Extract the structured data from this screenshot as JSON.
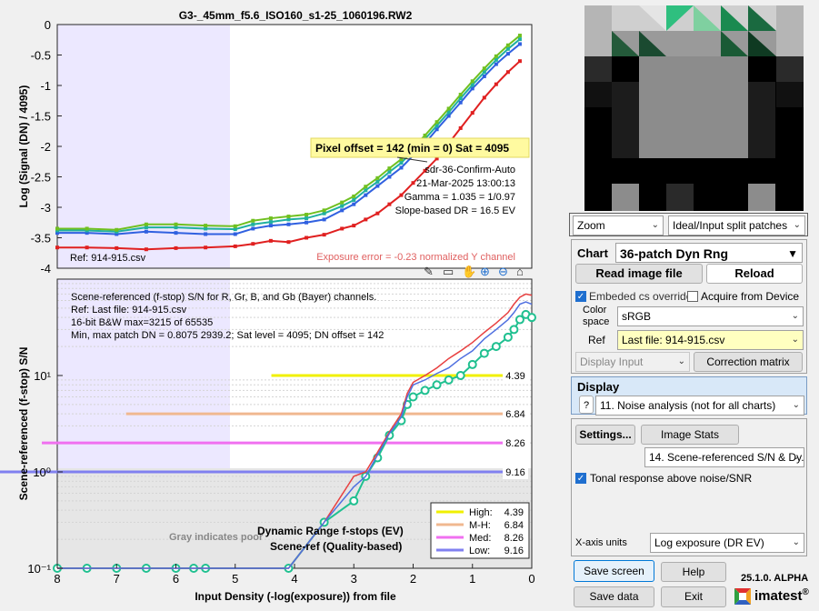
{
  "plot_title": "G3-_45mm_f5.6_ISO160_s1-25_1060196.RW2",
  "top_chart": {
    "ylabel": "Log (Signal (DN) / 4095)",
    "yticks": [
      "0",
      "-0.5",
      "-1",
      "-1.5",
      "-2",
      "-2.5",
      "-3",
      "-3.5",
      "-4"
    ],
    "ref_text": "Ref: 914-915.csv",
    "pixel_offset_text": "Pixel offset = 142  (min = 0)  Sat = 4095",
    "info_lines": [
      "sdr-36-Confirm-Auto",
      "21-Mar-2025 13:00:13",
      "Gamma = 1.035 = 1/0.97",
      "Slope-based DR = 16.5 EV"
    ],
    "exposure_error": "Exposure error = -0.23 normalized Y channel"
  },
  "bottom_chart": {
    "ylabel": "Scene-referenced (f-stop) S/N",
    "xlabel": "Input Density (-log(exposure))   from file",
    "xticks": [
      "8",
      "7",
      "6",
      "5",
      "4",
      "3",
      "2",
      "1",
      "0"
    ],
    "yticks": [
      "10¹",
      "10⁰",
      "10⁻¹"
    ],
    "info_lines": [
      "Scene-referenced (f-stop) S/N for R, Gr, B, and Gb (Bayer) channels.",
      "Ref: Last file: 914-915.csv",
      "16-bit B&W  max=3215 of 65535",
      "Min, max patch DN = 0.8075  2939.2;   Sat level = 4095;   DN offset = 142"
    ],
    "gray_note": "Gray indicates poor",
    "dr_label_1": "Dynamic Range f-stops (EV)",
    "dr_label_2": "Scene-ref (Quality-based)",
    "level_labels": [
      "4.39",
      "6.84",
      "8.26",
      "9.16"
    ],
    "legend": [
      {
        "name": "High:",
        "value": "4.39",
        "color": "#f0f000"
      },
      {
        "name": "M-H:",
        "value": "6.84",
        "color": "#f0b890"
      },
      {
        "name": "Med:",
        "value": "8.26",
        "color": "#f070f0"
      },
      {
        "name": "Low:",
        "value": "9.16",
        "color": "#8080f0"
      }
    ]
  },
  "chart_data": [
    {
      "type": "line",
      "title": "G3-_45mm_f5.6_ISO160_s1-25_1060196.RW2",
      "xlabel": "Input Density (-log(exposure))   from file",
      "ylabel": "Log (Signal (DN) / 4095)",
      "xlim": [
        8,
        0
      ],
      "ylim": [
        -4,
        0
      ],
      "x": [
        8,
        7.5,
        7,
        6.5,
        6,
        5.5,
        5,
        4.7,
        4.4,
        4.1,
        3.8,
        3.5,
        3.2,
        3.0,
        2.8,
        2.6,
        2.4,
        2.2,
        2.0,
        1.8,
        1.6,
        1.4,
        1.2,
        1.0,
        0.8,
        0.6,
        0.4,
        0.2
      ],
      "series": [
        {
          "color": "#e02020",
          "values": [
            -3.66,
            -3.66,
            -3.67,
            -3.69,
            -3.67,
            -3.66,
            -3.64,
            -3.6,
            -3.55,
            -3.57,
            -3.5,
            -3.45,
            -3.35,
            -3.3,
            -3.2,
            -3.1,
            -2.95,
            -2.8,
            -2.6,
            -2.4,
            -2.2,
            -1.95,
            -1.7,
            -1.45,
            -1.2,
            -0.98,
            -0.78,
            -0.6
          ]
        },
        {
          "color": "#3060e0",
          "values": [
            -3.42,
            -3.42,
            -3.44,
            -3.4,
            -3.42,
            -3.44,
            -3.44,
            -3.35,
            -3.3,
            -3.28,
            -3.25,
            -3.2,
            -3.05,
            -2.95,
            -2.8,
            -2.65,
            -2.5,
            -2.35,
            -2.15,
            -1.95,
            -1.72,
            -1.5,
            -1.28,
            -1.05,
            -0.85,
            -0.65,
            -0.48,
            -0.32
          ]
        },
        {
          "color": "#20b0a0",
          "values": [
            -3.38,
            -3.38,
            -3.4,
            -3.33,
            -3.33,
            -3.35,
            -3.36,
            -3.28,
            -3.24,
            -3.2,
            -3.18,
            -3.1,
            -2.98,
            -2.88,
            -2.72,
            -2.58,
            -2.42,
            -2.27,
            -2.07,
            -1.88,
            -1.66,
            -1.44,
            -1.21,
            -0.99,
            -0.78,
            -0.58,
            -0.4,
            -0.24
          ]
        },
        {
          "color": "#70c020",
          "values": [
            -3.35,
            -3.35,
            -3.37,
            -3.28,
            -3.28,
            -3.3,
            -3.31,
            -3.22,
            -3.18,
            -3.15,
            -3.12,
            -3.05,
            -2.92,
            -2.82,
            -2.66,
            -2.52,
            -2.36,
            -2.21,
            -2.01,
            -1.82,
            -1.6,
            -1.38,
            -1.15,
            -0.93,
            -0.72,
            -0.52,
            -0.34,
            -0.18
          ]
        }
      ]
    },
    {
      "type": "line",
      "xlabel": "Input Density (-log(exposure))   from file",
      "ylabel": "Scene-referenced (f-stop) S/N",
      "xlim": [
        8,
        0
      ],
      "ylim": [
        0.1,
        100
      ],
      "yscale": "log",
      "x": [
        8,
        7.5,
        7,
        6.5,
        6,
        5.7,
        5.5,
        4.1,
        3.5,
        3.0,
        2.8,
        2.6,
        2.4,
        2.2,
        2.1,
        2.0,
        1.8,
        1.6,
        1.4,
        1.2,
        1.0,
        0.8,
        0.6,
        0.4,
        0.3,
        0.2,
        0.1,
        0.0
      ],
      "series": [
        {
          "color": "#20c090",
          "values": [
            0.1,
            0.1,
            0.1,
            0.1,
            0.1,
            0.1,
            0.1,
            0.1,
            0.3,
            0.5,
            0.9,
            1.4,
            2.4,
            3.4,
            5,
            6,
            7,
            8,
            9,
            10,
            13,
            17,
            20,
            25,
            30,
            38,
            43,
            40
          ]
        },
        {
          "color": "#e84040",
          "values": [
            0.1,
            0.1,
            0.1,
            0.1,
            0.1,
            0.1,
            0.1,
            0.1,
            0.3,
            0.9,
            1.0,
            1.6,
            2.6,
            4.0,
            6.5,
            8.5,
            10,
            12,
            15,
            18,
            22,
            28,
            35,
            45,
            55,
            65,
            70,
            68
          ]
        },
        {
          "color": "#5070e0",
          "values": [
            0.1,
            0.1,
            0.1,
            0.1,
            0.1,
            0.1,
            0.1,
            0.1,
            0.3,
            0.7,
            0.9,
            1.5,
            2.5,
            3.7,
            6,
            8,
            9,
            10.5,
            12,
            15,
            18,
            24,
            30,
            38,
            45,
            55,
            58,
            55
          ]
        }
      ],
      "levels": [
        {
          "name": "High",
          "value": 4.39,
          "y": 10
        },
        {
          "name": "M-H",
          "value": 6.84,
          "y": 4
        },
        {
          "name": "Med",
          "value": 8.26,
          "y": 2
        },
        {
          "name": "Low",
          "value": 9.16,
          "y": 1
        }
      ]
    }
  ],
  "toolbar_icons": [
    "pencil-icon",
    "data-cursor-icon",
    "pan-icon",
    "zoom-in-icon",
    "zoom-out-icon",
    "home-icon"
  ],
  "zoom": {
    "selected": "Zoom",
    "mode": "Ideal/Input split patches"
  },
  "chart_panel": {
    "chart_label": "Chart",
    "chart_value": "36-patch Dyn Rng",
    "read_image": "Read image file",
    "reload": "Reload",
    "embedded_cs": "Embeded cs override",
    "embedded_cs_checked": true,
    "acquire": "Acquire from Device",
    "acquire_checked": false,
    "color_space_label_1": "Color",
    "color_space_label_2": "space",
    "color_space": "sRGB",
    "ref_label": "Ref",
    "ref_value": "Last file: 914-915.csv",
    "display_input": "Display Input",
    "correction_matrix": "Correction matrix"
  },
  "display_panel": {
    "label": "Display",
    "help": "?",
    "value": "11. Noise analysis (not for all charts)"
  },
  "settings_panel": {
    "settings": "Settings...",
    "image_stats": "Image Stats",
    "plot_select": "14. Scene-referenced S/N & Dy...",
    "tonal_checkbox": "Tonal response above noise/SNR",
    "tonal_checked": true,
    "xaxis_label": "X-axis units",
    "xaxis_value": "Log exposure (DR EV)"
  },
  "buttons": {
    "save_screen": "Save screen",
    "help": "Help",
    "save_data": "Save data",
    "exit": "Exit"
  },
  "version": "25.1.0. ALPHA",
  "brand": "imatest",
  "brand_mark": "®",
  "colors": {
    "selected_bg": "#cce8ff",
    "accent": "#1f6fcf",
    "highlight": "#ffffc0"
  }
}
